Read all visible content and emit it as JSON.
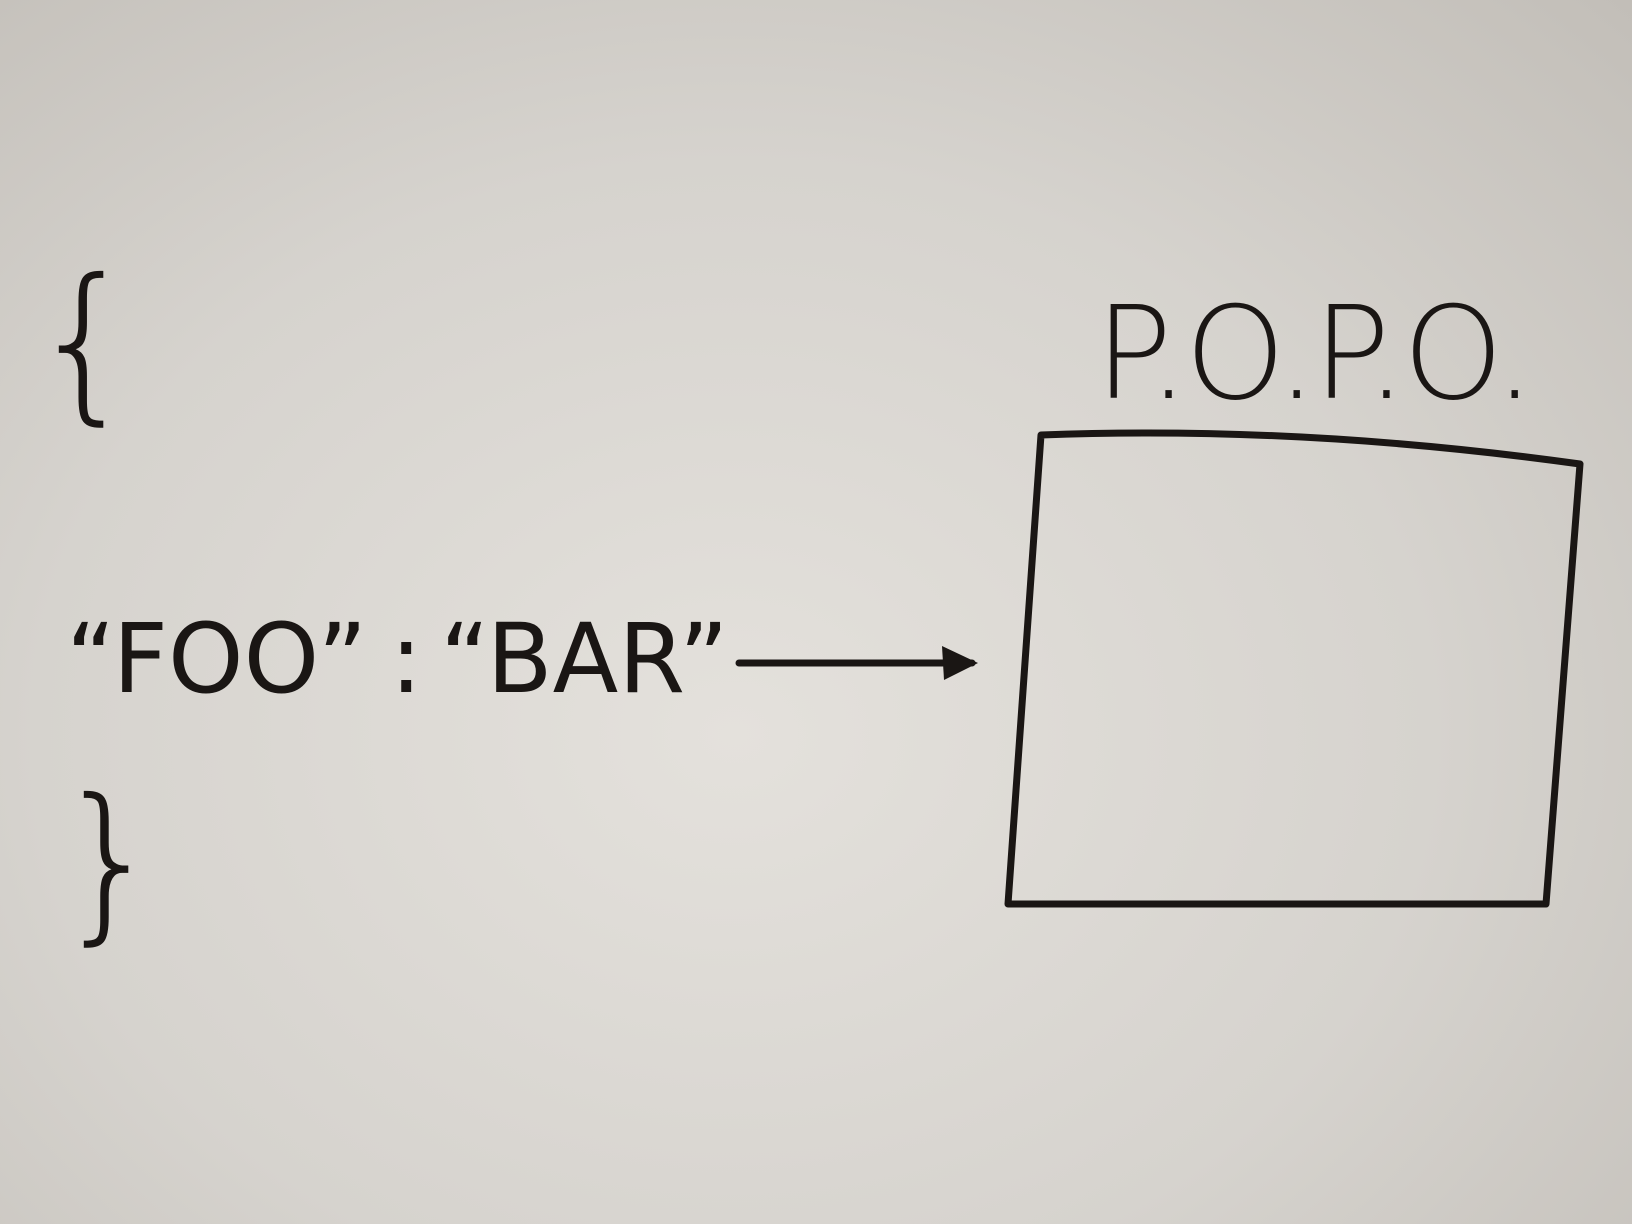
{
  "json_snippet": {
    "open_brace": "{",
    "key": "“FOO”",
    "separator": ":",
    "value": "“BAR”",
    "close_brace": "}"
  },
  "object": {
    "label": "P.O.P.O."
  }
}
